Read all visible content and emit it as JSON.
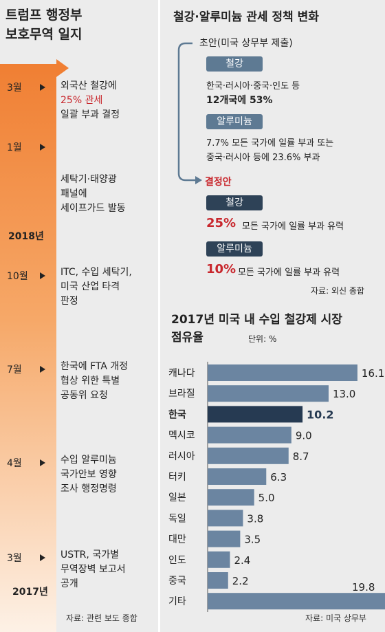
{
  "left": {
    "title_line1": "트럼프 행정부",
    "title_line2": "보호무역 일지",
    "events": [
      {
        "month": "3월",
        "text1": "외국산 철강에",
        "text2": "25% 관세",
        "text3": "일괄 부과 결정"
      },
      {
        "month": "1월",
        "text1": "세탁기·태양광",
        "text2": "패널에",
        "text3": "세이프가드 발동"
      },
      {
        "month": "10월",
        "text1": "ITC, 수입 세탁기,",
        "text2": "미국 산업 타격",
        "text3": "판정"
      },
      {
        "month": "7월",
        "text1": "한국에 FTA 개정",
        "text2": "협상 위한 특별",
        "text3": "공동위 요청"
      },
      {
        "month": "4월",
        "text1": "수입 알루미늄",
        "text2": "국가안보 영향",
        "text3": "조사 행정명령"
      },
      {
        "month": "3월",
        "text1": "USTR, 국가별",
        "text2": "무역장벽 보고서",
        "text3": "공개"
      }
    ],
    "year_2018": "2018년",
    "year_2017": "2017년",
    "source": "자료: 관련 보도 종합"
  },
  "policy": {
    "title": "철강·알루미늄 관세 정책 변화",
    "draft_label": "초안(미국 상무부 제출)",
    "steel_pill": "철강",
    "steel_line1": "한국·러시아·중국·인도 등",
    "steel_line2": "12개국에 53%",
    "alu_pill": "알루미늄",
    "alu_line1": "7.7% 모든 국가에 일률 부과 또는",
    "alu_line2": "중국·러시아 등에 23.6% 부과",
    "final_label": "결정안",
    "final_steel_pill": "철강",
    "final_steel_pct": "25%",
    "final_steel_text": "모든 국가에 일률 부과 유력",
    "final_alu_pill": "알루미늄",
    "final_alu_pct": "10%",
    "final_alu_text": "모든 국가에 일률 부과 유력",
    "source": "자료: 외신 종합"
  },
  "chart_data": {
    "type": "bar",
    "orientation": "horizontal",
    "title": "2017년 미국 내 수입 철강제 시장 점유율",
    "unit": "단위: %",
    "categories": [
      "캐나다",
      "브라질",
      "한국",
      "멕시코",
      "러시아",
      "터키",
      "일본",
      "독일",
      "대만",
      "인도",
      "중국",
      "기타"
    ],
    "values": [
      16.1,
      13.0,
      10.2,
      9.0,
      8.7,
      6.3,
      5.0,
      3.8,
      3.5,
      2.4,
      2.2,
      19.8
    ],
    "value_labels": [
      "16.1",
      "13.0",
      "10.2",
      "9.0",
      "8.7",
      "6.3",
      "5.0",
      "3.8",
      "3.5",
      "2.4",
      "2.2",
      "19.8"
    ],
    "highlight": "한국",
    "colors": {
      "bar": "#6b85a1",
      "highlight": "#263a52"
    },
    "source": "자료: 미국 상무부"
  }
}
